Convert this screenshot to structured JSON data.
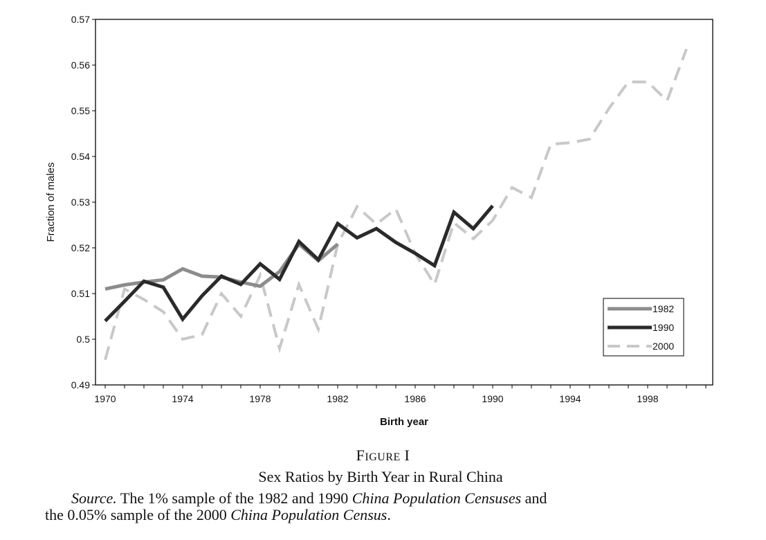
{
  "chart_data": {
    "type": "line",
    "title": "",
    "xlabel": "Birth year",
    "ylabel": "Fraction of males",
    "xlim": [
      1970,
      2001
    ],
    "ylim": [
      0.49,
      0.57
    ],
    "x_ticks": [
      "1970",
      "1974",
      "1978",
      "1982",
      "1986",
      "1990",
      "1994",
      "1998"
    ],
    "y_ticks": [
      "0.49",
      "0.5",
      "0.51",
      "0.52",
      "0.53",
      "0.54",
      "0.55",
      "0.56",
      "0.57"
    ],
    "grid": false,
    "legend_position": "bottom-right",
    "series": [
      {
        "name": "1982",
        "color": "#8c8c8c",
        "style": "solid-thick",
        "x": [
          1970,
          1971,
          1972,
          1973,
          1974,
          1975,
          1976,
          1977,
          1978,
          1979,
          1980,
          1981,
          1982
        ],
        "values": [
          0.511,
          0.5119,
          0.5125,
          0.513,
          0.5154,
          0.5138,
          0.5136,
          0.5125,
          0.5116,
          0.5148,
          0.5208,
          0.5172,
          0.5208
        ]
      },
      {
        "name": "1990",
        "color": "#2a2a2a",
        "style": "solid-thick",
        "x": [
          1970,
          1971,
          1972,
          1973,
          1974,
          1975,
          1976,
          1977,
          1978,
          1979,
          1980,
          1981,
          1982,
          1983,
          1984,
          1985,
          1986,
          1987,
          1988,
          1989,
          1990
        ],
        "values": [
          0.504,
          0.5083,
          0.5127,
          0.5114,
          0.5044,
          0.5095,
          0.5138,
          0.512,
          0.5165,
          0.5131,
          0.5214,
          0.5174,
          0.5253,
          0.5222,
          0.5242,
          0.5212,
          0.5188,
          0.5161,
          0.5278,
          0.5242,
          0.5292
        ]
      },
      {
        "name": "2000",
        "color": "#c8c8c8",
        "style": "dashed",
        "x": [
          1970,
          1971,
          1972,
          1973,
          1974,
          1975,
          1976,
          1977,
          1978,
          1979,
          1980,
          1981,
          1982,
          1983,
          1984,
          1985,
          1986,
          1987,
          1988,
          1989,
          1990,
          1991,
          1992,
          1993,
          1994,
          1995,
          1996,
          1997,
          1998,
          1999,
          2000
        ],
        "values": [
          0.4955,
          0.511,
          0.5087,
          0.506,
          0.5,
          0.501,
          0.51,
          0.505,
          0.514,
          0.498,
          0.512,
          0.5022,
          0.5208,
          0.529,
          0.5252,
          0.5285,
          0.5188,
          0.512,
          0.5255,
          0.522,
          0.526,
          0.5332,
          0.531,
          0.5427,
          0.543,
          0.5438,
          0.5505,
          0.5563,
          0.5563,
          0.5522,
          0.5635
        ]
      }
    ]
  },
  "caption": {
    "figure_label_first": "F",
    "figure_label_rest": "IGURE",
    "figure_number": "I",
    "title": "Sex Ratios by Birth Year in Rural China",
    "source_lead": "Source.",
    "source_text_1": " The 1% sample of the 1982 and 1990 ",
    "source_italic_1": "China Population Censuses",
    "source_text_2": " and",
    "source_text_3": "the 0.05% sample of the 2000 ",
    "source_italic_2": "China Population Census",
    "source_text_4": "."
  }
}
